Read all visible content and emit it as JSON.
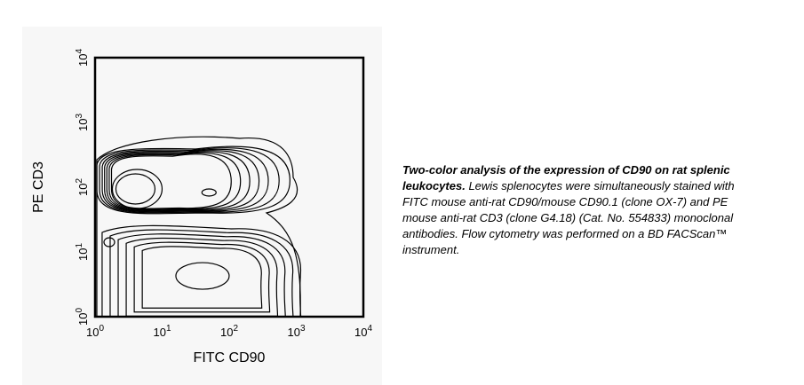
{
  "chart_data": {
    "type": "contour",
    "xlabel": "FITC CD90",
    "ylabel": "PE CD3",
    "xscale": "log",
    "yscale": "log",
    "xlim": [
      1,
      10000
    ],
    "ylim": [
      1,
      10000
    ],
    "x_ticks": [
      {
        "base": "10",
        "exp": "0"
      },
      {
        "base": "10",
        "exp": "1"
      },
      {
        "base": "10",
        "exp": "2"
      },
      {
        "base": "10",
        "exp": "3"
      },
      {
        "base": "10",
        "exp": "4"
      }
    ],
    "y_ticks": [
      {
        "base": "10",
        "exp": "0"
      },
      {
        "base": "10",
        "exp": "1"
      },
      {
        "base": "10",
        "exp": "2"
      },
      {
        "base": "10",
        "exp": "3"
      },
      {
        "base": "10",
        "exp": "4"
      }
    ],
    "populations": [
      {
        "x_center": 4,
        "y_center": 100,
        "description_level": "CD3+ peak"
      },
      {
        "x_center": 50,
        "y_center": 100,
        "description_level": "CD3+ CD90+ secondary peak"
      },
      {
        "x_center": 40,
        "y_center": 4,
        "description_level": "CD3- peak"
      }
    ],
    "line_color": "#000000"
  },
  "caption": {
    "bold": "Two-color analysis of the expression of CD90 on rat splenic leukocytes.",
    "text": " Lewis splenocytes were simultaneously stained with FITC mouse anti-rat CD90/mouse CD90.1 (clone OX-7) and PE mouse anti-rat CD3 (clone G4.18) (Cat. No. 554833) monoclonal antibodies. Flow cytometry was performed on a BD FACScan™ instrument."
  }
}
